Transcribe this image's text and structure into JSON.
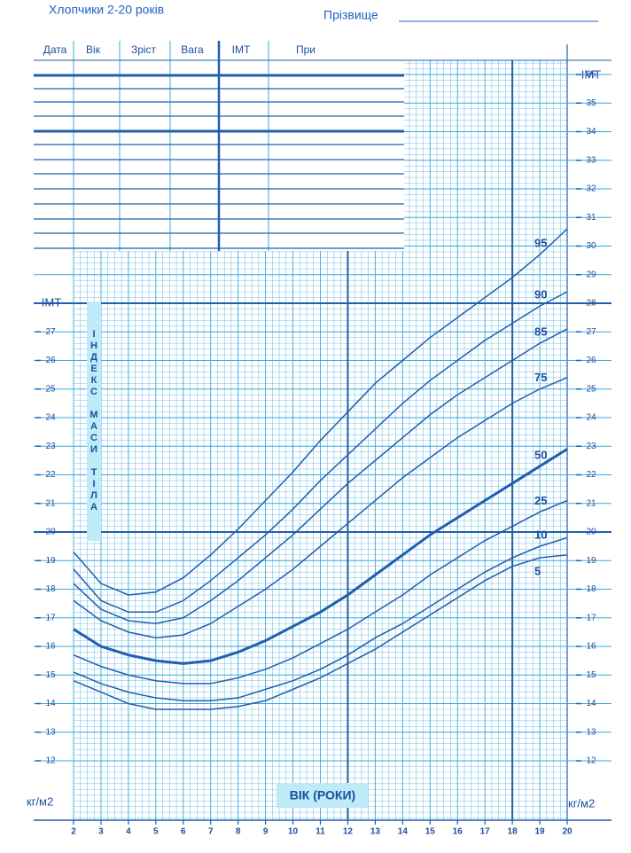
{
  "chart_data": {
    "type": "line",
    "title": "Хлопчики 2-20 років",
    "name_label": "Прізвище",
    "table_columns": [
      "Дата",
      "Вік",
      "Зріст",
      "Вага",
      "ІМТ",
      "При"
    ],
    "ylabel": "ІМТ",
    "ylabel_vertical": "ІНДЕКС МАСИ ТІЛА",
    "unit": "кг/м2",
    "xlabel": "ВІК (РОКИ)",
    "x": [
      2,
      3,
      4,
      5,
      6,
      7,
      8,
      9,
      10,
      11,
      12,
      13,
      14,
      15,
      16,
      17,
      18,
      19,
      20
    ],
    "xlim": [
      2,
      20
    ],
    "xticks": [
      2,
      3,
      4,
      5,
      6,
      7,
      8,
      9,
      10,
      11,
      12,
      13,
      14,
      15,
      16,
      17,
      18,
      19,
      20
    ],
    "ylim": [
      10,
      37
    ],
    "yticks": [
      12,
      13,
      14,
      15,
      16,
      17,
      18,
      19,
      20,
      21,
      22,
      23,
      24,
      25,
      26,
      27,
      28,
      29,
      30,
      31,
      32,
      33,
      34,
      35,
      36
    ],
    "left_yticks": [
      12,
      13,
      14,
      15,
      16,
      17,
      18,
      19,
      20,
      21,
      22,
      23,
      24,
      25,
      26,
      27
    ],
    "major_yticks": [
      20,
      28
    ],
    "major_xticks": [
      12,
      18
    ],
    "grid": true,
    "series": [
      {
        "name": "95",
        "color": "#1f5fae",
        "values": [
          19.3,
          18.2,
          17.8,
          17.9,
          18.4,
          19.2,
          20.1,
          21.1,
          22.1,
          23.2,
          24.2,
          25.2,
          26.0,
          26.8,
          27.5,
          28.2,
          28.9,
          29.7,
          30.6
        ]
      },
      {
        "name": "90",
        "color": "#1f5fae",
        "values": [
          18.7,
          17.6,
          17.2,
          17.2,
          17.6,
          18.3,
          19.1,
          19.9,
          20.8,
          21.8,
          22.7,
          23.6,
          24.5,
          25.3,
          26.0,
          26.7,
          27.3,
          27.9,
          28.4
        ]
      },
      {
        "name": "85",
        "color": "#1f5fae",
        "values": [
          18.2,
          17.3,
          16.9,
          16.8,
          17.0,
          17.6,
          18.3,
          19.1,
          19.9,
          20.8,
          21.7,
          22.5,
          23.3,
          24.1,
          24.8,
          25.4,
          26.0,
          26.6,
          27.1
        ]
      },
      {
        "name": "75",
        "color": "#1f5fae",
        "values": [
          17.6,
          16.9,
          16.5,
          16.3,
          16.4,
          16.8,
          17.4,
          18.0,
          18.7,
          19.5,
          20.3,
          21.1,
          21.9,
          22.6,
          23.3,
          23.9,
          24.5,
          25.0,
          25.4
        ]
      },
      {
        "name": "50",
        "color": "#1f5fae",
        "values": [
          16.6,
          16.0,
          15.7,
          15.5,
          15.4,
          15.5,
          15.8,
          16.2,
          16.7,
          17.2,
          17.8,
          18.5,
          19.2,
          19.9,
          20.5,
          21.1,
          21.7,
          22.3,
          22.9
        ]
      },
      {
        "name": "25",
        "color": "#1f5fae",
        "values": [
          15.7,
          15.3,
          15.0,
          14.8,
          14.7,
          14.7,
          14.9,
          15.2,
          15.6,
          16.1,
          16.6,
          17.2,
          17.8,
          18.5,
          19.1,
          19.7,
          20.2,
          20.7,
          21.1
        ]
      },
      {
        "name": "10",
        "color": "#1f5fae",
        "values": [
          15.1,
          14.7,
          14.4,
          14.2,
          14.1,
          14.1,
          14.2,
          14.5,
          14.8,
          15.2,
          15.7,
          16.3,
          16.8,
          17.4,
          18.0,
          18.6,
          19.1,
          19.5,
          19.8
        ]
      },
      {
        "name": "5",
        "color": "#1f5fae",
        "values": [
          14.8,
          14.4,
          14.0,
          13.8,
          13.8,
          13.8,
          13.9,
          14.1,
          14.5,
          14.9,
          15.4,
          15.9,
          16.5,
          17.1,
          17.7,
          18.3,
          18.8,
          19.1,
          19.2
        ]
      }
    ]
  }
}
